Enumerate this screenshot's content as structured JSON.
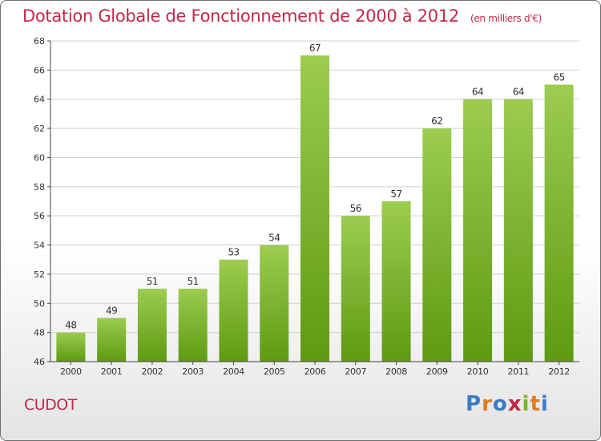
{
  "header": {
    "title": "Dotation Globale de Fonctionnement de 2000 à 2012",
    "subtitle": "(en milliers d'€)"
  },
  "footer": {
    "commune": "CUDOT",
    "brand": "Proxiti",
    "brand_letters": [
      {
        "ch": "P",
        "color": "#3a7cc4"
      },
      {
        "ch": "r",
        "color": "#e07b22"
      },
      {
        "ch": "o",
        "color": "#3a7cc4"
      },
      {
        "ch": "x",
        "color": "#c0284a"
      },
      {
        "ch": "i",
        "color": "#7ab32e"
      },
      {
        "ch": "t",
        "color": "#e07b22"
      },
      {
        "ch": "i",
        "color": "#3a7cc4"
      }
    ]
  },
  "colors": {
    "title": "#c0284a",
    "bar_top": "#9ccc50",
    "bar_bottom": "#5e9a12",
    "grid": "#d0d0d0",
    "axis": "#444444"
  },
  "chart_data": {
    "type": "bar",
    "categories": [
      "2000",
      "2001",
      "2002",
      "2003",
      "2004",
      "2005",
      "2006",
      "2007",
      "2008",
      "2009",
      "2010",
      "2011",
      "2012"
    ],
    "values": [
      48,
      49,
      51,
      51,
      53,
      54,
      67,
      56,
      57,
      62,
      64,
      64,
      65
    ],
    "data_labels": [
      "48",
      "49",
      "51",
      "51",
      "53",
      "54",
      "67",
      "56",
      "57",
      "62",
      "64",
      "64",
      "65"
    ],
    "ylim": [
      46,
      68
    ],
    "yticks": [
      46,
      48,
      50,
      52,
      54,
      56,
      58,
      60,
      62,
      64,
      66,
      68
    ],
    "grid": true,
    "legend": "none"
  }
}
